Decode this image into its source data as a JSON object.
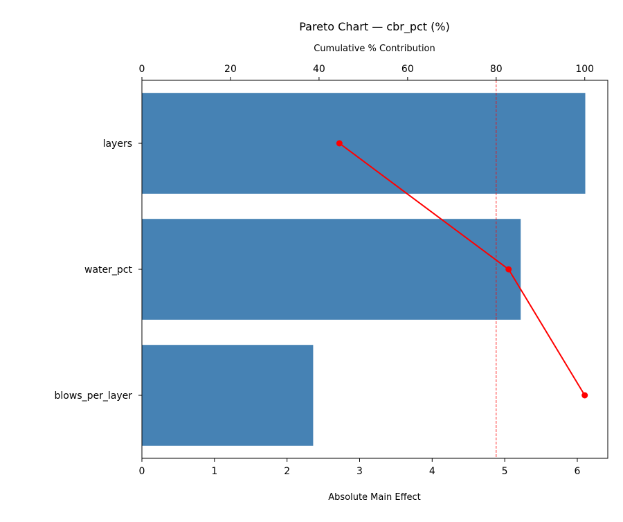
{
  "chart_data": {
    "type": "bar",
    "orientation": "horizontal",
    "title": "Pareto Chart — cbr_pct (%)",
    "xlabel": "Absolute Main Effect",
    "top_xlabel": "Cumulative % Contribution",
    "categories": [
      "layers",
      "water_pct",
      "blows_per_layer"
    ],
    "values": [
      6.11,
      5.22,
      2.36
    ],
    "cumulative_pct": [
      44.6,
      82.8,
      100.0
    ],
    "threshold_pct": 80,
    "xlim": [
      0,
      6.42
    ],
    "top_xlim": [
      0,
      105.2
    ],
    "xticks": [
      "0",
      "1",
      "2",
      "3",
      "4",
      "5",
      "6"
    ],
    "top_xticks": [
      "0",
      "20",
      "40",
      "60",
      "80",
      "100"
    ],
    "bar_color": "#4682b4",
    "line_color": "#ff0000",
    "grid": false
  }
}
